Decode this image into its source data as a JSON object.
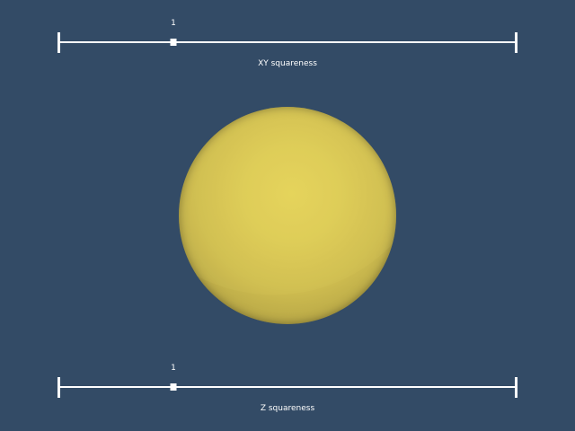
{
  "sliders": {
    "xy": {
      "label": "XY squareness",
      "value_text": "1",
      "value": 1,
      "min": 0,
      "max": 4
    },
    "z": {
      "label": "Z squareness",
      "value_text": "1",
      "value": 1,
      "min": 0,
      "max": 4
    }
  },
  "colors": {
    "background": "#334b66",
    "sphere": "#ddcb56",
    "slider": "#ffffff"
  }
}
